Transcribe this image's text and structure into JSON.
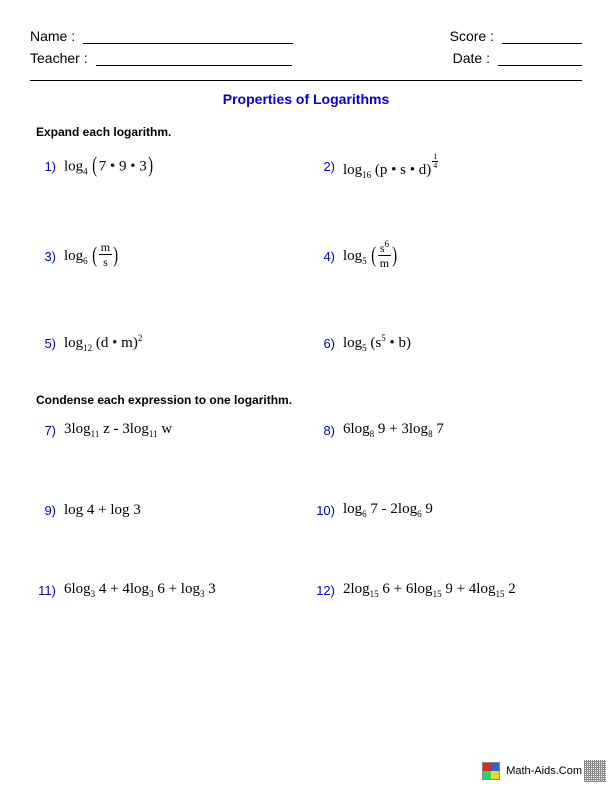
{
  "header": {
    "name_label": "Name :",
    "teacher_label": "Teacher :",
    "score_label": "Score :",
    "date_label": "Date :"
  },
  "title": "Properties of Logarithms",
  "section1": {
    "instruction": "Expand each logarithm.",
    "problems": [
      {
        "n": "1)",
        "html": "log<sub>4</sub> <span class='lparen'>(</span>7 • 9 • 3<span class='rparen'>)</span>"
      },
      {
        "n": "2)",
        "html": "log<sub>16</sub> (p • s • d)<span class='small-frac'><span class='num'>1</span><span class='den'>4</span></span>"
      },
      {
        "n": "3)",
        "html": "log<sub>6</sub> <span class='lparen'>(</span><span class='frac'><span class='num'>m</span><span class='den'>s</span></span><span class='rparen'>)</span>"
      },
      {
        "n": "4)",
        "html": "log<sub>5</sub> <span class='lparen'>(</span><span class='frac'><span class='num'>s<sup>6</sup></span><span class='den'>m</span></span><span class='rparen'>)</span>"
      },
      {
        "n": "5)",
        "html": "log<sub>12</sub> (d • m)<sup>2</sup>"
      },
      {
        "n": "6)",
        "html": "log<sub>5</sub> (s<sup>5</sup> • b)"
      }
    ]
  },
  "section2": {
    "instruction": "Condense each expression to one logarithm.",
    "problems": [
      {
        "n": "7)",
        "html": "3log<sub>11</sub> z - 3log<sub>11</sub> w"
      },
      {
        "n": "8)",
        "html": "6log<sub>8</sub> 9 + 3log<sub>8</sub> 7"
      },
      {
        "n": "9)",
        "html": "log 4 + log 3"
      },
      {
        "n": "10)",
        "html": "log<sub>6</sub> 7 - 2log<sub>6</sub> 9"
      },
      {
        "n": "11)",
        "html": "6log<sub>3</sub> 4 + 4log<sub>3</sub> 6 + log<sub>3</sub> 3"
      },
      {
        "n": "12)",
        "html": "2log<sub>15</sub> 6 + 6log<sub>15</sub> 9 + 4log<sub>15</sub> 2"
      }
    ]
  },
  "footer": {
    "site": "Math-Aids.Com",
    "logo_colors": [
      "#d62b2b",
      "#2b65d6",
      "#2bd65a",
      "#e8d62b"
    ]
  },
  "style": {
    "page_bg": "#ffffff",
    "text_color": "#000000",
    "accent_color": "#0000cc",
    "body_font": "Arial",
    "math_font": "Times New Roman",
    "title_fontsize_pt": 14,
    "body_fontsize_pt": 13,
    "instruction_fontsize_pt": 12
  }
}
